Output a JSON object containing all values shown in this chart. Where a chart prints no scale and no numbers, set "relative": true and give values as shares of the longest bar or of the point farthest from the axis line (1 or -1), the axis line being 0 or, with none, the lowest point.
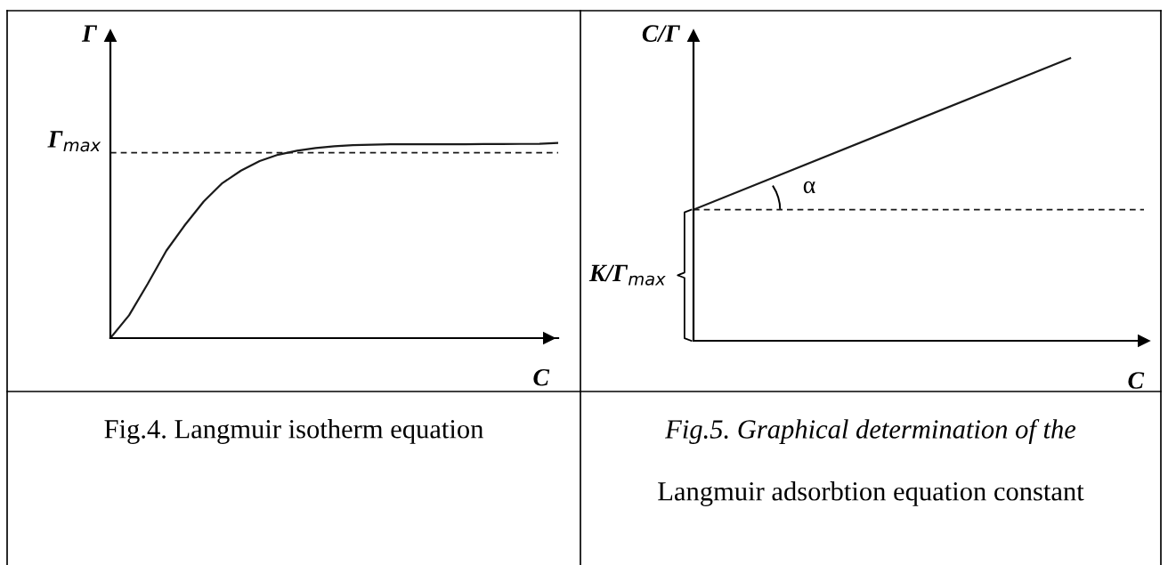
{
  "chart_data": [
    {
      "type": "line",
      "relative": true,
      "xlabel": "C",
      "ylabel": "Γ",
      "categories": [
        null,
        null,
        null,
        null,
        null,
        null,
        null,
        null,
        null,
        null,
        null,
        null,
        null,
        null,
        null,
        null,
        null,
        null,
        null,
        null,
        null,
        null,
        null,
        null,
        null
      ],
      "series": [
        {
          "color": "#1a1a1a",
          "values": [
            0,
            0.117,
            0.278,
            0.448,
            0.58,
            0.7,
            0.794,
            0.858,
            0.907,
            0.94,
            0.96,
            0.974,
            0.983,
            0.989,
            0.991,
            0.993,
            0.993,
            0.993,
            0.993,
            0.993,
            0.994,
            0.994,
            0.995,
            0.996,
            1
          ]
        }
      ],
      "ref_lines": [
        {
          "axis": "y",
          "value": 0.95,
          "label": "Γ$_{max}$",
          "line_style": "dashed",
          "color": "#1a1a1a"
        }
      ],
      "annotations": [
        "Fig.4. Langmuir isotherm equation"
      ]
    },
    {
      "type": "line",
      "relative": true,
      "xlabel": "C",
      "ylabel": "C/Γ",
      "categories": [
        null,
        null
      ],
      "series": [
        {
          "color": "#1a1a1a",
          "values": [
            0.464,
            1
          ]
        }
      ],
      "ref_lines": [
        {
          "axis": "y",
          "value": 0.464,
          "label": "K/Γ$_{max}$",
          "line_style": "dashed",
          "color": "#1a1a1a"
        }
      ],
      "annotations": [
        "α",
        "Fig.5. Graphical determination of the",
        "Langmuir adsorbtion equation constant"
      ]
    }
  ]
}
